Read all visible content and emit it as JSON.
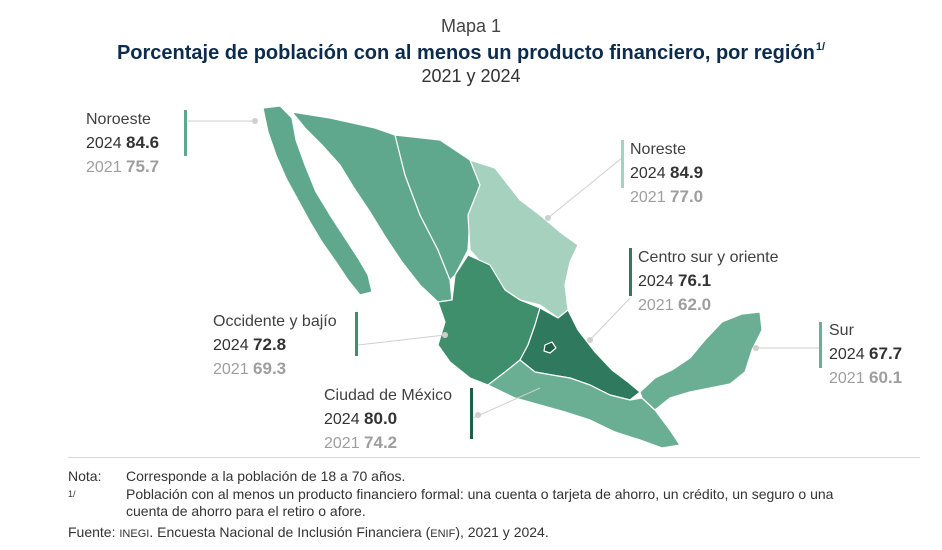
{
  "header": {
    "kicker": "Mapa 1",
    "title": "Porcentaje de población con al menos un producto financiero, por región",
    "title_note": "1/",
    "years": "2021 y 2024"
  },
  "regions": {
    "noroeste": {
      "name": "Noroeste",
      "y2024_label": "2024",
      "y2024": "84.6",
      "y2021_label": "2021",
      "y2021": "75.7",
      "color": "#5fa88d"
    },
    "noreste": {
      "name": "Noreste",
      "y2024_label": "2024",
      "y2024": "84.9",
      "y2021_label": "2021",
      "y2021": "77.0",
      "color": "#a7d1bf"
    },
    "centro_sur": {
      "name": "Centro sur y oriente",
      "y2024_label": "2024",
      "y2024": "76.1",
      "y2021_label": "2021",
      "y2021": "62.0",
      "color": "#2f7a5e"
    },
    "occidente": {
      "name": "Occidente y bajío",
      "y2024_label": "2024",
      "y2024": "72.8",
      "y2021_label": "2021",
      "y2021": "69.3",
      "color": "#3f8f6d"
    },
    "cdmx": {
      "name": "Ciudad de México",
      "y2024_label": "2024",
      "y2024": "80.0",
      "y2021_label": "2021",
      "y2021": "74.2",
      "color": "#1f5e47"
    },
    "sur": {
      "name": "Sur",
      "y2024_label": "2024",
      "y2024": "67.7",
      "y2021_label": "2021",
      "y2021": "60.1",
      "color": "#6aae93"
    }
  },
  "notes": {
    "nota_tag": "Nota:",
    "nota_text": "Corresponde a la población de 18 a 70 años.",
    "footnote_tag": "1/",
    "footnote_text_line1": "Población con al menos un producto financiero formal: una cuenta o tarjeta de ahorro, un crédito, un seguro o una",
    "footnote_text_line2": "cuenta de ahorro para el retiro o afore.",
    "fuente_tag": "Fuente:",
    "fuente_org": "INEGI",
    "fuente_text_a": ". Encuesta Nacional de Inclusión Financiera (",
    "fuente_abbr": "ENIF",
    "fuente_text_b": "), 2021 y 2024."
  }
}
